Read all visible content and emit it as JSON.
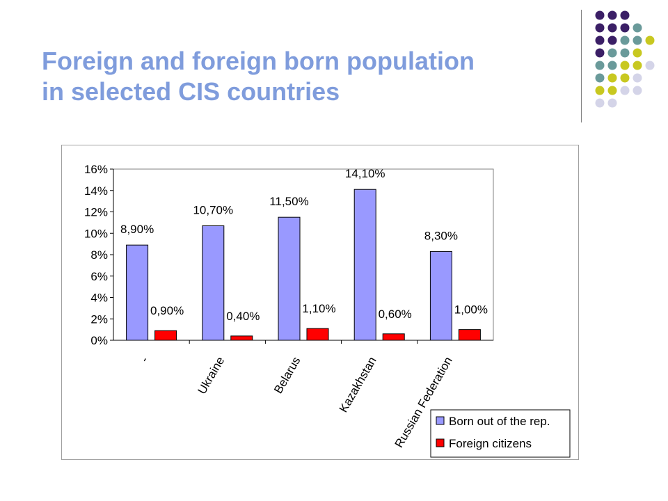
{
  "slide": {
    "title_line1": "Foreign and foreign born population",
    "title_line2": "in selected CIS countries",
    "title_color": "#7f9cdc"
  },
  "decoration": {
    "dot_rows": [
      [
        "#3b1f66",
        "#3b1f66",
        "#3b1f66"
      ],
      [
        "#3b1f66",
        "#3b1f66",
        "#3b1f66",
        "#6a9a9a"
      ],
      [
        "#3b1f66",
        "#3b1f66",
        "#6a9a9a",
        "#6a9a9a",
        "#c8c820"
      ],
      [
        "#3b1f66",
        "#6a9a9a",
        "#6a9a9a",
        "#c8c820"
      ],
      [
        "#6a9a9a",
        "#6a9a9a",
        "#c8c820",
        "#c8c820",
        "#d4d4e8"
      ],
      [
        "#6a9a9a",
        "#c8c820",
        "#c8c820",
        "#d4d4e8"
      ],
      [
        "#c8c820",
        "#c8c820",
        "#d4d4e8",
        "#d4d4e8"
      ],
      [
        "#d4d4e8",
        "#d4d4e8"
      ]
    ]
  },
  "chart_data": {
    "type": "bar",
    "categories": [
      "-",
      "Ukraine",
      "Belarus",
      "Kazakhstan",
      "Russian Federation"
    ],
    "series": [
      {
        "name": "Born out of the rep.",
        "color": "#9999ff",
        "values": [
          8.9,
          10.7,
          11.5,
          14.1,
          8.3
        ],
        "labels": [
          "8,90%",
          "10,70%",
          "11,50%",
          "14,10%",
          "8,30%"
        ]
      },
      {
        "name": "Foreign citizens",
        "color": "#ff0000",
        "values": [
          0.9,
          0.4,
          1.1,
          0.6,
          1.0
        ],
        "labels": [
          "0,90%",
          "0,40%",
          "1,10%",
          "0,60%",
          "1,00%"
        ]
      }
    ],
    "ylim": [
      0,
      16
    ],
    "yticks": [
      0,
      2,
      4,
      6,
      8,
      10,
      12,
      14,
      16
    ],
    "ytick_labels": [
      "0%",
      "2%",
      "4%",
      "6%",
      "8%",
      "10%",
      "12%",
      "14%",
      "16%"
    ],
    "legend": "bottom-right",
    "grid": false
  }
}
